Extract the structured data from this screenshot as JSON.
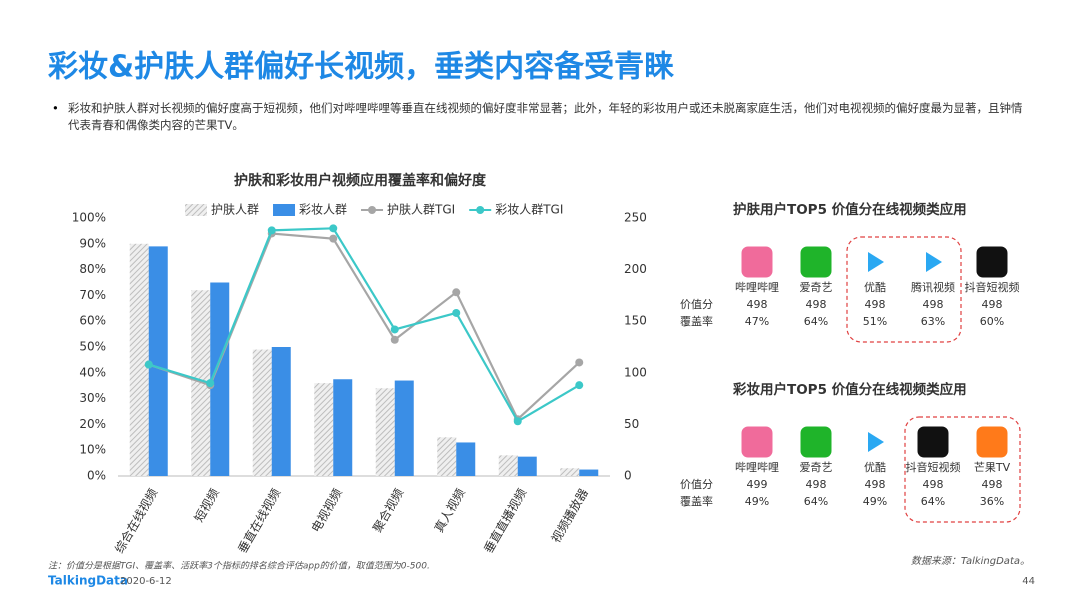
{
  "title": "彩妆&护肤人群偏好长视频，垂类内容备受青睐",
  "bullet": "彩妆和护肤人群对长视频的偏好度高于短视频，他们对哔哩哔哩等垂直在线视频的偏好度非常显著；此外，年轻的彩妆用户或还未脱离家庭生活，他们对电视视频的偏好度最为显著，且钟情代表青春和偶像类内容的芒果TV。",
  "chart_data": {
    "type": "bar",
    "title": "护肤和彩妆用户视频应用覆盖率和偏好度",
    "categories": [
      "综合在线视频",
      "短视频",
      "垂直在线视频",
      "电视视频",
      "聚合视频",
      "真人视频",
      "垂直直播视频",
      "视频播放器"
    ],
    "series": [
      {
        "name": "护肤人群",
        "type": "bar",
        "color": "#c8c8c8",
        "pattern": "hatch",
        "values": [
          90,
          72,
          49,
          36,
          34,
          15,
          8,
          3
        ]
      },
      {
        "name": "彩妆人群",
        "type": "bar",
        "color": "#3a8ee6",
        "values": [
          89,
          75,
          50,
          37.5,
          37,
          13,
          7.5,
          2.5
        ]
      },
      {
        "name": "护肤人群TGI",
        "type": "line",
        "axis": "y2",
        "color": "#a6a6a6",
        "values": [
          108,
          88,
          235,
          230,
          132,
          178,
          55,
          110
        ]
      },
      {
        "name": "彩妆人群TGI",
        "type": "line",
        "axis": "y2",
        "color": "#3cc8c8",
        "values": [
          108,
          90,
          238,
          240,
          142,
          158,
          53,
          88
        ]
      }
    ],
    "ylim": [
      0,
      100
    ],
    "yticks": [
      {
        "value": 0,
        "label": "0%"
      },
      {
        "value": 10,
        "label": "10%"
      },
      {
        "value": 20,
        "label": "20%"
      },
      {
        "value": 30,
        "label": "30%"
      },
      {
        "value": 40,
        "label": "40%"
      },
      {
        "value": 50,
        "label": "50%"
      },
      {
        "value": 60,
        "label": "60%"
      },
      {
        "value": 70,
        "label": "70%"
      },
      {
        "value": 80,
        "label": "80%"
      },
      {
        "value": 90,
        "label": "90%"
      },
      {
        "value": 100,
        "label": "100%"
      }
    ],
    "y2lim": [
      0,
      250
    ],
    "y2ticks": [
      0,
      50,
      100,
      150,
      200,
      250
    ],
    "grid": false,
    "legend": "top"
  },
  "tables": [
    {
      "title": "护肤用户TOP5 价值分在线视频类应用",
      "highlight": [
        2,
        3
      ],
      "apps": [
        {
          "name": "哔哩哔哩",
          "color": "#f06b9b"
        },
        {
          "name": "爱奇艺",
          "color": "#1fb42a"
        },
        {
          "name": "优酷",
          "color": "#ffffff"
        },
        {
          "name": "腾讯视频",
          "color": "#ffffff"
        },
        {
          "name": "抖音短视频",
          "color": "#111111"
        }
      ],
      "rows": [
        {
          "label": "价值分",
          "values": [
            "498",
            "498",
            "498",
            "498",
            "498"
          ]
        },
        {
          "label": "覆盖率",
          "values": [
            "47%",
            "64%",
            "51%",
            "63%",
            "60%"
          ]
        }
      ]
    },
    {
      "title": "彩妆用户TOP5 价值分在线视频类应用",
      "highlight": [
        3,
        4
      ],
      "apps": [
        {
          "name": "哔哩哔哩",
          "color": "#f06b9b"
        },
        {
          "name": "爱奇艺",
          "color": "#1fb42a"
        },
        {
          "name": "优酷",
          "color": "#ffffff"
        },
        {
          "name": "抖音短视频",
          "color": "#111111"
        },
        {
          "name": "芒果TV",
          "color": "#ff7a1a"
        }
      ],
      "rows": [
        {
          "label": "价值分",
          "values": [
            "499",
            "498",
            "498",
            "498",
            "498"
          ]
        },
        {
          "label": "覆盖率",
          "values": [
            "49%",
            "64%",
            "49%",
            "64%",
            "36%"
          ]
        }
      ]
    }
  ],
  "footnote": "注：价值分是根据TGI、覆盖率、活跃率3个指标的排名综合评估app的价值，取值范围为0-500.",
  "source": "数据来源：TalkingData。",
  "logo": "TalkingData",
  "date": "2020-6-12",
  "page": "44"
}
